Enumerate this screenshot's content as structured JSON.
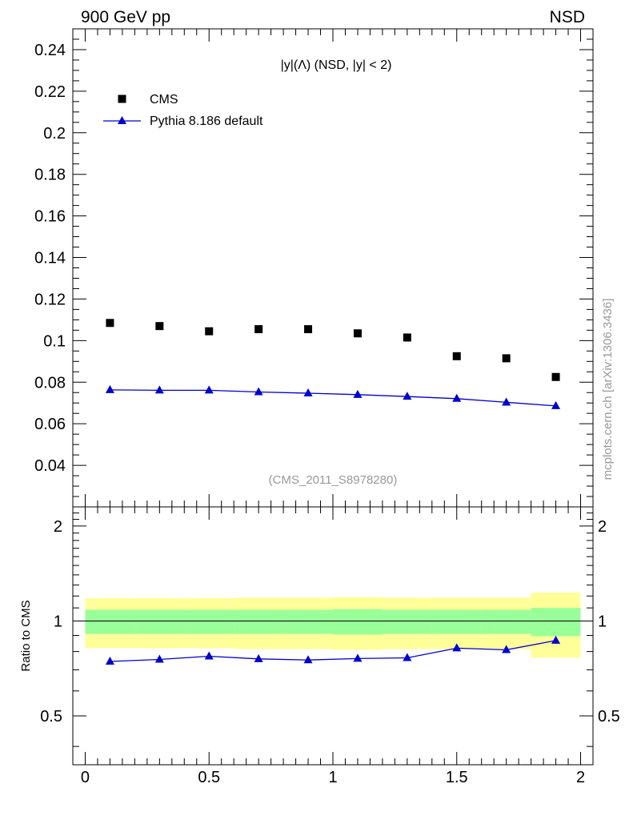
{
  "header": {
    "left": "900 GeV pp",
    "right": "NSD"
  },
  "watermark": "mcplots.cern.ch [arXiv:1306.3436]",
  "analysis_label": "(CMS_2011_S8978280)",
  "main_title": "|y|(Λ) (NSD, |y| < 2)",
  "ratio_ylabel": "Ratio to CMS",
  "colors": {
    "data": "#000000",
    "mc": "#0000cc",
    "band_inner": "#99ff99",
    "band_outer": "#ffff99"
  },
  "chart_data": [
    {
      "type": "scatter",
      "panel": "main",
      "title": "|y|(Λ) (NSD, |y| < 2)",
      "xlim": [
        -0.05,
        2.05
      ],
      "ylim": [
        0.02,
        0.25
      ],
      "yticks": [
        0.04,
        0.06,
        0.08,
        0.1,
        0.12,
        0.14,
        0.16,
        0.18,
        0.2,
        0.22,
        0.24
      ],
      "ytick_labels": [
        "0.04",
        "0.06",
        "0.08",
        "0.1",
        "0.12",
        "0.14",
        "0.16",
        "0.18",
        "0.2",
        "0.22",
        "0.24"
      ],
      "legend_position": "top-left",
      "series": [
        {
          "name": "CMS",
          "marker": "square",
          "x": [
            0.1,
            0.3,
            0.5,
            0.7,
            0.9,
            1.1,
            1.3,
            1.5,
            1.7,
            1.9
          ],
          "y": [
            0.1085,
            0.107,
            0.1045,
            0.1055,
            0.1055,
            0.1035,
            0.1015,
            0.0925,
            0.0915,
            0.0825
          ]
        },
        {
          "name": "Pythia 8.186 default",
          "marker": "triangle",
          "x": [
            0.1,
            0.3,
            0.5,
            0.7,
            0.9,
            1.1,
            1.3,
            1.5,
            1.7,
            1.9
          ],
          "y": [
            0.0763,
            0.0761,
            0.0761,
            0.0753,
            0.0747,
            0.074,
            0.0731,
            0.0721,
            0.0703,
            0.0686
          ]
        }
      ]
    },
    {
      "type": "line",
      "panel": "ratio",
      "xlim": [
        -0.05,
        2.05
      ],
      "ylim": [
        0.35,
        2.3
      ],
      "xticks": [
        0,
        0.5,
        1,
        1.5,
        2
      ],
      "xtick_labels": [
        "0",
        "0.5",
        "1",
        "1.5",
        "2"
      ],
      "yticks": [
        0.5,
        1,
        2
      ],
      "ytick_labels": [
        "0.5",
        "1",
        "2"
      ],
      "ylabel": "Ratio to CMS",
      "reference_line": 1,
      "bands": {
        "bin_edges": [
          0.0,
          0.2,
          0.4,
          0.6,
          0.8,
          1.0,
          1.2,
          1.4,
          1.6,
          1.8,
          2.0
        ],
        "inner_low": [
          0.91,
          0.91,
          0.91,
          0.91,
          0.91,
          0.905,
          0.91,
          0.91,
          0.91,
          0.895
        ],
        "inner_high": [
          1.085,
          1.085,
          1.085,
          1.085,
          1.085,
          1.09,
          1.085,
          1.085,
          1.085,
          1.1
        ],
        "outer_low": [
          0.82,
          0.82,
          0.82,
          0.815,
          0.815,
          0.81,
          0.815,
          0.815,
          0.815,
          0.765
        ],
        "outer_high": [
          1.18,
          1.18,
          1.18,
          1.185,
          1.185,
          1.19,
          1.185,
          1.185,
          1.185,
          1.23
        ]
      },
      "series": [
        {
          "name": "Pythia 8.186 default",
          "x": [
            0.1,
            0.3,
            0.5,
            0.7,
            0.9,
            1.1,
            1.3,
            1.5,
            1.7,
            1.9
          ],
          "y": [
            0.744,
            0.755,
            0.773,
            0.758,
            0.752,
            0.76,
            0.764,
            0.82,
            0.81,
            0.867
          ]
        }
      ]
    }
  ]
}
